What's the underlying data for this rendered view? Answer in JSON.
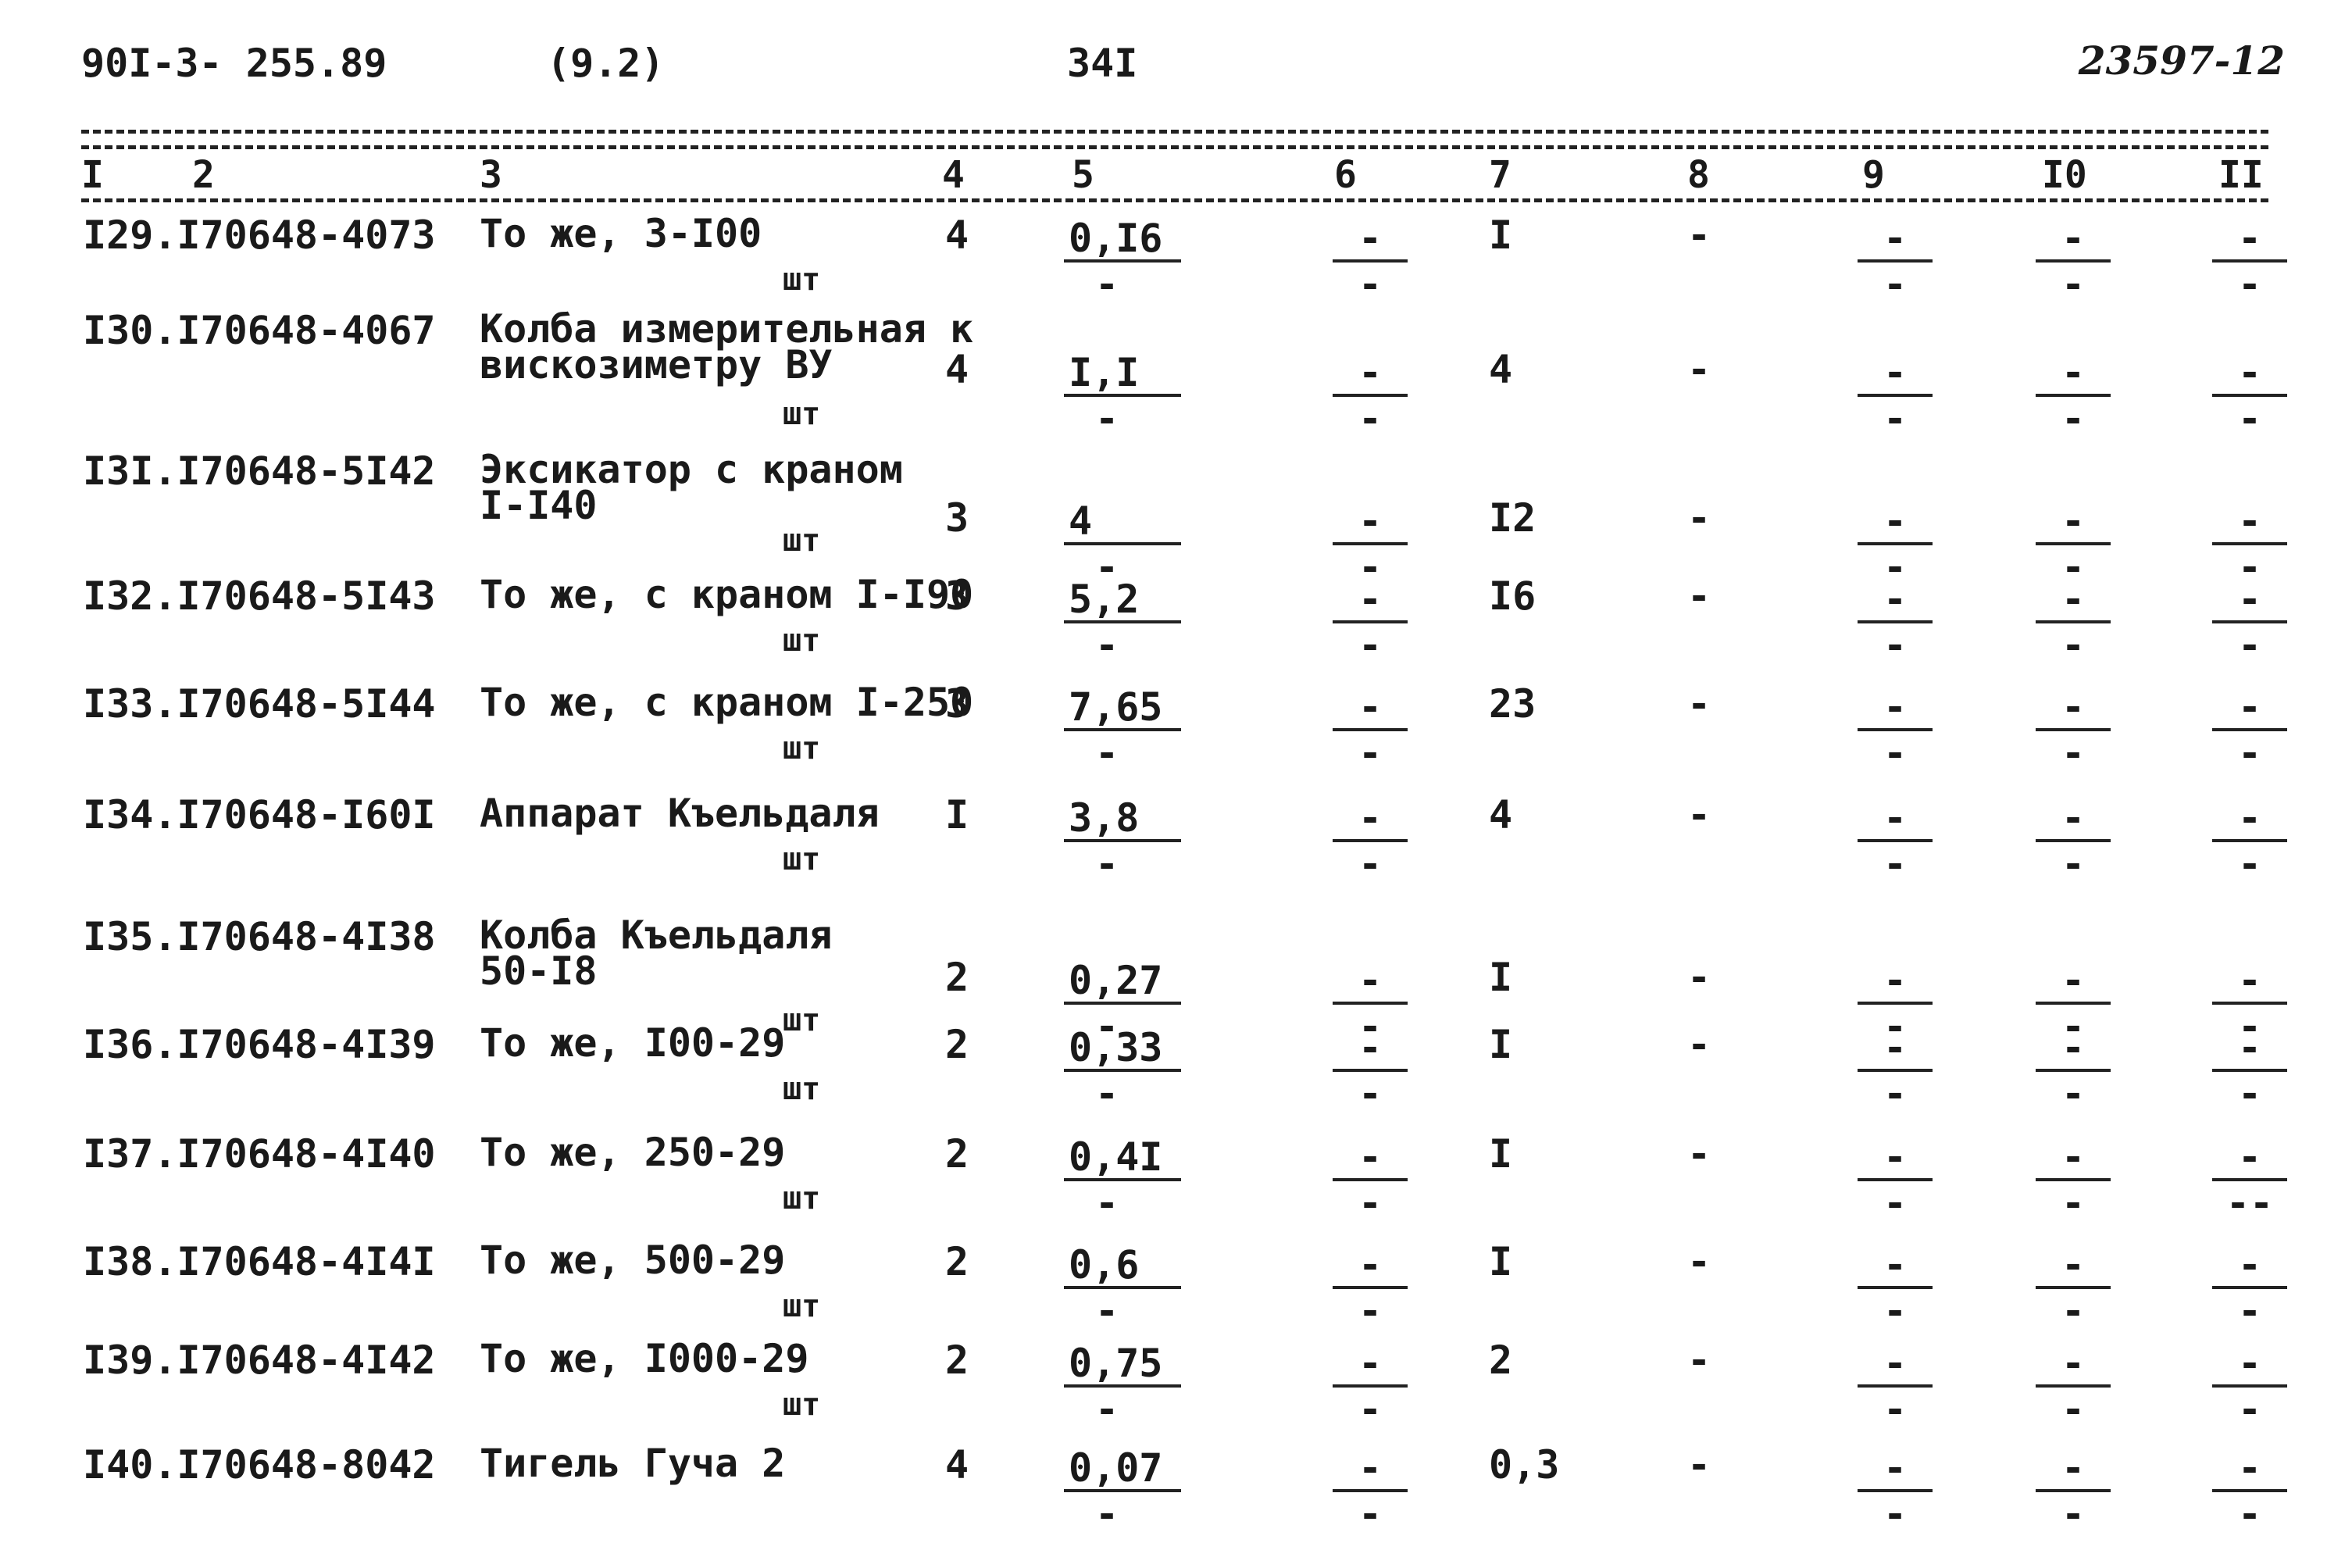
{
  "header": {
    "code": "90I-3- 255.89",
    "section": "(9.2)",
    "page": "34I",
    "inventory": "23597-12"
  },
  "columns": [
    "I",
    "2",
    "3",
    "4",
    "5",
    "6",
    "7",
    "8",
    "9",
    "I0",
    "II"
  ],
  "rows": [
    {
      "num": "I29.I70648-4073",
      "name": "То же, 3-I00",
      "unit": "шт",
      "c4": "4",
      "c5": "0,I6",
      "c5b": "-",
      "c6": "-",
      "c6b": "-",
      "c7": "I",
      "c8": "-",
      "c9": "-",
      "c9b": "-",
      "c10": "-",
      "c10b": "-",
      "c11": "-",
      "c11b": "-"
    },
    {
      "num": "I30.I70648-4067",
      "name": "Колба измерительная к\nвискозиметру ВУ",
      "unit": "шт",
      "c4": "4",
      "c5": "I,I",
      "c5b": "-",
      "c6": "-",
      "c6b": "-",
      "c7": "4",
      "c8": "-",
      "c9": "-",
      "c9b": "-",
      "c10": "-",
      "c10b": "-",
      "c11": "-",
      "c11b": "-"
    },
    {
      "num": "I3I.I70648-5I42",
      "name": "Эксикатор с краном\nI-I40",
      "unit": "шт",
      "c4": "3",
      "c5": "4",
      "c5b": "-",
      "c6": "-",
      "c6b": "-",
      "c7": "I2",
      "c8": "-",
      "c9": "-",
      "c9b": "-",
      "c10": "-",
      "c10b": "-",
      "c11": "-",
      "c11b": "-"
    },
    {
      "num": "I32.I70648-5I43",
      "name": "То же, с краном I-I90",
      "unit": "шт",
      "c4": "3",
      "c5": "5,2",
      "c5b": "-",
      "c6": "-",
      "c6b": "-",
      "c7": "I6",
      "c8": "-",
      "c9": "-",
      "c9b": "-",
      "c10": "-",
      "c10b": "-",
      "c11": "-",
      "c11b": "-"
    },
    {
      "num": "I33.I70648-5I44",
      "name": "То же, с краном I-250",
      "unit": "шт",
      "c4": "3",
      "c5": "7,65",
      "c5b": "-",
      "c6": "-",
      "c6b": "-",
      "c7": "23",
      "c8": "-",
      "c9": "-",
      "c9b": "-",
      "c10": "-",
      "c10b": "-",
      "c11": "-",
      "c11b": "-"
    },
    {
      "num": "I34.I70648-I60I",
      "name": "Аппарат Къельдаля",
      "unit": "шт",
      "c4": "I",
      "c5": "3,8",
      "c5b": "-",
      "c6": "-",
      "c6b": "-",
      "c7": "4",
      "c8": "-",
      "c9": "-",
      "c9b": "-",
      "c10": "-",
      "c10b": "-",
      "c11": "-",
      "c11b": "-"
    },
    {
      "num": "I35.I70648-4I38",
      "name": "Колба Къельдаля\n50-I8",
      "unit": "шт",
      "c4": "2",
      "c5": "0,27",
      "c5b": "-",
      "c6": "-",
      "c6b": "-",
      "c7": "I",
      "c8": "-",
      "c9": "-",
      "c9b": "-",
      "c10": "-",
      "c10b": "-",
      "c11": "-",
      "c11b": "-"
    },
    {
      "num": "I36.I70648-4I39",
      "name": "То же, I00-29",
      "unit": "шт",
      "c4": "2",
      "c5": "0,33",
      "c5b": "-",
      "c6": "-",
      "c6b": "-",
      "c7": "I",
      "c8": "-",
      "c9": "-",
      "c9b": "-",
      "c10": "-",
      "c10b": "-",
      "c11": "-",
      "c11b": "-"
    },
    {
      "num": "I37.I70648-4I40",
      "name": "То же, 250-29",
      "unit": "шт",
      "c4": "2",
      "c5": "0,4I",
      "c5b": "-",
      "c6": "-",
      "c6b": "-",
      "c7": "I",
      "c8": "-",
      "c9": "-",
      "c9b": "-",
      "c10": "-",
      "c10b": "-",
      "c11": "-",
      "c11b": "--"
    },
    {
      "num": "I38.I70648-4I4I",
      "name": "То же, 500-29",
      "unit": "шт",
      "c4": "2",
      "c5": "0,6",
      "c5b": "-",
      "c6": "-",
      "c6b": "-",
      "c7": "I",
      "c8": "-",
      "c9": "-",
      "c9b": "-",
      "c10": "-",
      "c10b": "-",
      "c11": "-",
      "c11b": "-"
    },
    {
      "num": "I39.I70648-4I42",
      "name": "То же, I000-29",
      "unit": "шт",
      "c4": "2",
      "c5": "0,75",
      "c5b": "-",
      "c6": "-",
      "c6b": "-",
      "c7": "2",
      "c8": "-",
      "c9": "-",
      "c9b": "-",
      "c10": "-",
      "c10b": "-",
      "c11": "-",
      "c11b": "-"
    },
    {
      "num": "I40.I70648-8042",
      "name": "Тигель Гуча 2",
      "unit": "",
      "c4": "4",
      "c5": "0,07",
      "c5b": "-",
      "c6": "-",
      "c6b": "-",
      "c7": "0,3",
      "c8": "-",
      "c9": "-",
      "c9b": "-",
      "c10": "-",
      "c10b": "-",
      "c11": "-",
      "c11b": "-"
    }
  ]
}
